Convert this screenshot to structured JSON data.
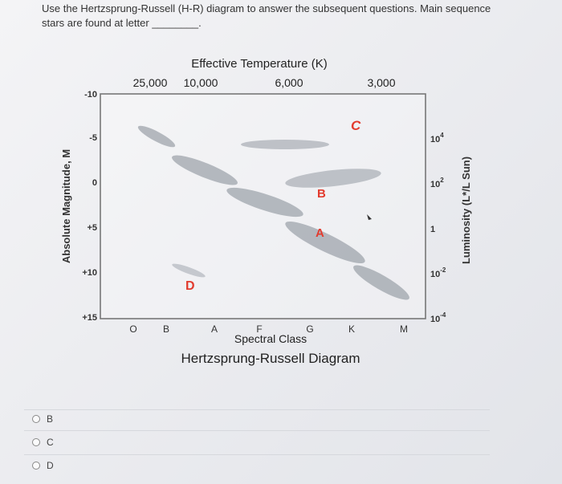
{
  "question": {
    "text_line1": "Use the Hertzsprung-Russell (H-R) diagram to answer the subsequent questions. Main sequence",
    "text_line2": "stars are found at letter",
    "blank": "________."
  },
  "diagram": {
    "title_top": "Effective Temperature (K)",
    "temperatures": [
      "25,000",
      "10,000",
      "6,000",
      "3,000"
    ],
    "left_axis_label": "Absolute Magnitude, M",
    "magnitudes": [
      "-10",
      "-5",
      "0",
      "+5",
      "+10",
      "+15"
    ],
    "right_axis_label": "Luminosity (L*/L Sun)",
    "luminosity_base": [
      "10",
      "10",
      "1",
      "10",
      "10"
    ],
    "luminosity_exp": [
      "4",
      "2",
      "",
      "-2",
      "-4"
    ],
    "spectral_classes": [
      "O",
      "B",
      "A",
      "F",
      "G",
      "K",
      "M"
    ],
    "spectral_label": "Spectral Class",
    "caption": "Hertzsprung-Russell Diagram",
    "letters": [
      "A",
      "B",
      "C",
      "D"
    ],
    "letter_color": "#e23b2e"
  },
  "options": [
    {
      "label": "B"
    },
    {
      "label": "C"
    },
    {
      "label": "D"
    }
  ]
}
